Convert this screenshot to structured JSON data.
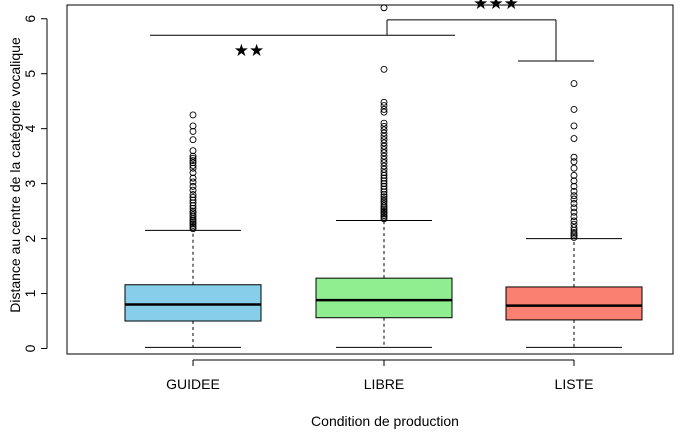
{
  "chart_data": {
    "type": "box",
    "xlabel": "Condition de production",
    "ylabel": "Distance au centre de la catégorie vocalique",
    "ylim": [
      -0.1,
      6.25
    ],
    "yticks": [
      "0",
      "1",
      "2",
      "3",
      "4",
      "5",
      "6"
    ],
    "grid": false,
    "box_outline": "#000000",
    "categories": [
      {
        "label": "GUIDEE",
        "color": "#87CEEB",
        "min": 0.02,
        "q1": 0.5,
        "median": 0.8,
        "q3": 1.16,
        "whisker_high": 2.15,
        "outliers": [
          2.18,
          2.21,
          2.24,
          2.27,
          2.3,
          2.33,
          2.36,
          2.4,
          2.43,
          2.47,
          2.5,
          2.55,
          2.6,
          2.65,
          2.7,
          2.75,
          2.8,
          2.88,
          2.95,
          3.03,
          3.1,
          3.2,
          3.28,
          3.33,
          3.38,
          3.42,
          3.46,
          3.5,
          3.6,
          3.8,
          3.95,
          4.05,
          4.25
        ]
      },
      {
        "label": "LIBRE",
        "color": "#90EE90",
        "min": 0.02,
        "q1": 0.56,
        "median": 0.88,
        "q3": 1.28,
        "whisker_high": 2.33,
        "outliers": [
          2.36,
          2.39,
          2.42,
          2.45,
          2.48,
          2.51,
          2.54,
          2.57,
          2.6,
          2.64,
          2.68,
          2.72,
          2.76,
          2.8,
          2.85,
          2.9,
          2.95,
          3.0,
          3.05,
          3.1,
          3.15,
          3.2,
          3.26,
          3.32,
          3.38,
          3.44,
          3.5,
          3.56,
          3.62,
          3.68,
          3.74,
          3.8,
          3.86,
          3.92,
          3.98,
          4.04,
          4.1,
          4.3,
          4.35,
          4.42,
          4.48,
          5.08,
          6.2
        ]
      },
      {
        "label": "LISTE",
        "color": "#FA8072",
        "min": 0.02,
        "q1": 0.52,
        "median": 0.78,
        "q3": 1.12,
        "whisker_high": 2.0,
        "outliers": [
          2.02,
          2.05,
          2.08,
          2.11,
          2.15,
          2.2,
          2.26,
          2.32,
          2.4,
          2.48,
          2.56,
          2.64,
          2.72,
          2.78,
          2.86,
          2.95,
          3.05,
          3.15,
          3.28,
          3.4,
          3.48,
          3.82,
          4.05,
          4.35,
          4.82
        ]
      }
    ],
    "annotations": [
      {
        "type": "bracket",
        "from": "GUIDEE",
        "to": "LIBRE-LISTE",
        "y": 5.7,
        "label": "★★",
        "label_x_cat": 1.45,
        "label_y": 5.32
      },
      {
        "type": "bracket",
        "from": "LIBRE",
        "to": "LISTE",
        "y": 5.98,
        "drop_left": 5.7,
        "drop_right": 5.23,
        "label": "★★★",
        "label_x_cat": 2.6,
        "label_y": 6.18
      }
    ]
  }
}
